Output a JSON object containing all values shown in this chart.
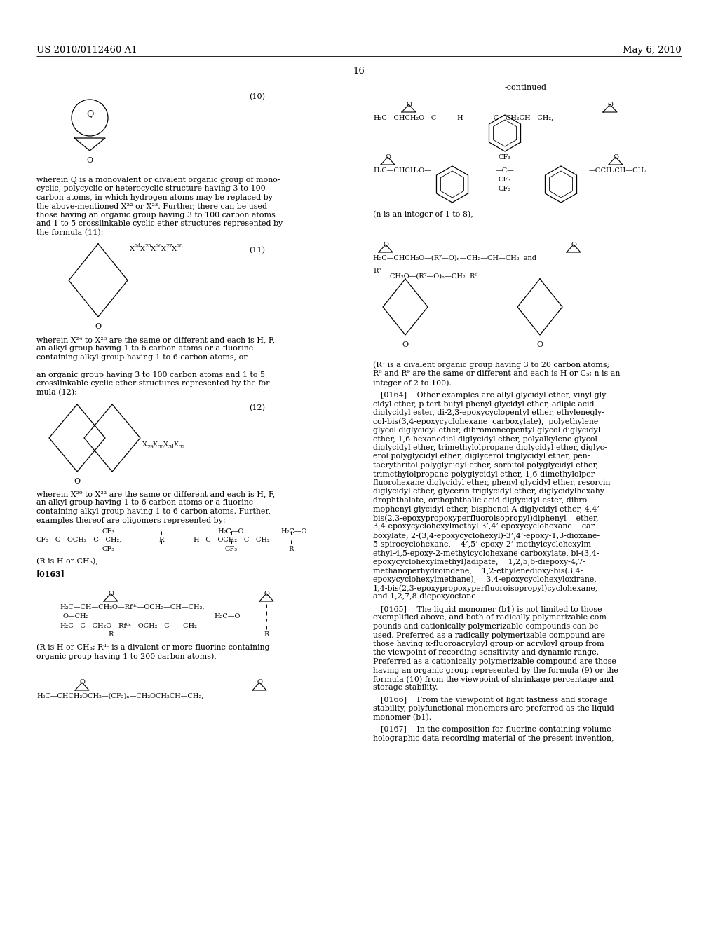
{
  "bg_color": "#ffffff",
  "page_width": 10.24,
  "page_height": 13.2,
  "header_left": "US 2010/0112460 A1",
  "header_right": "May 6, 2010",
  "page_number": "16"
}
